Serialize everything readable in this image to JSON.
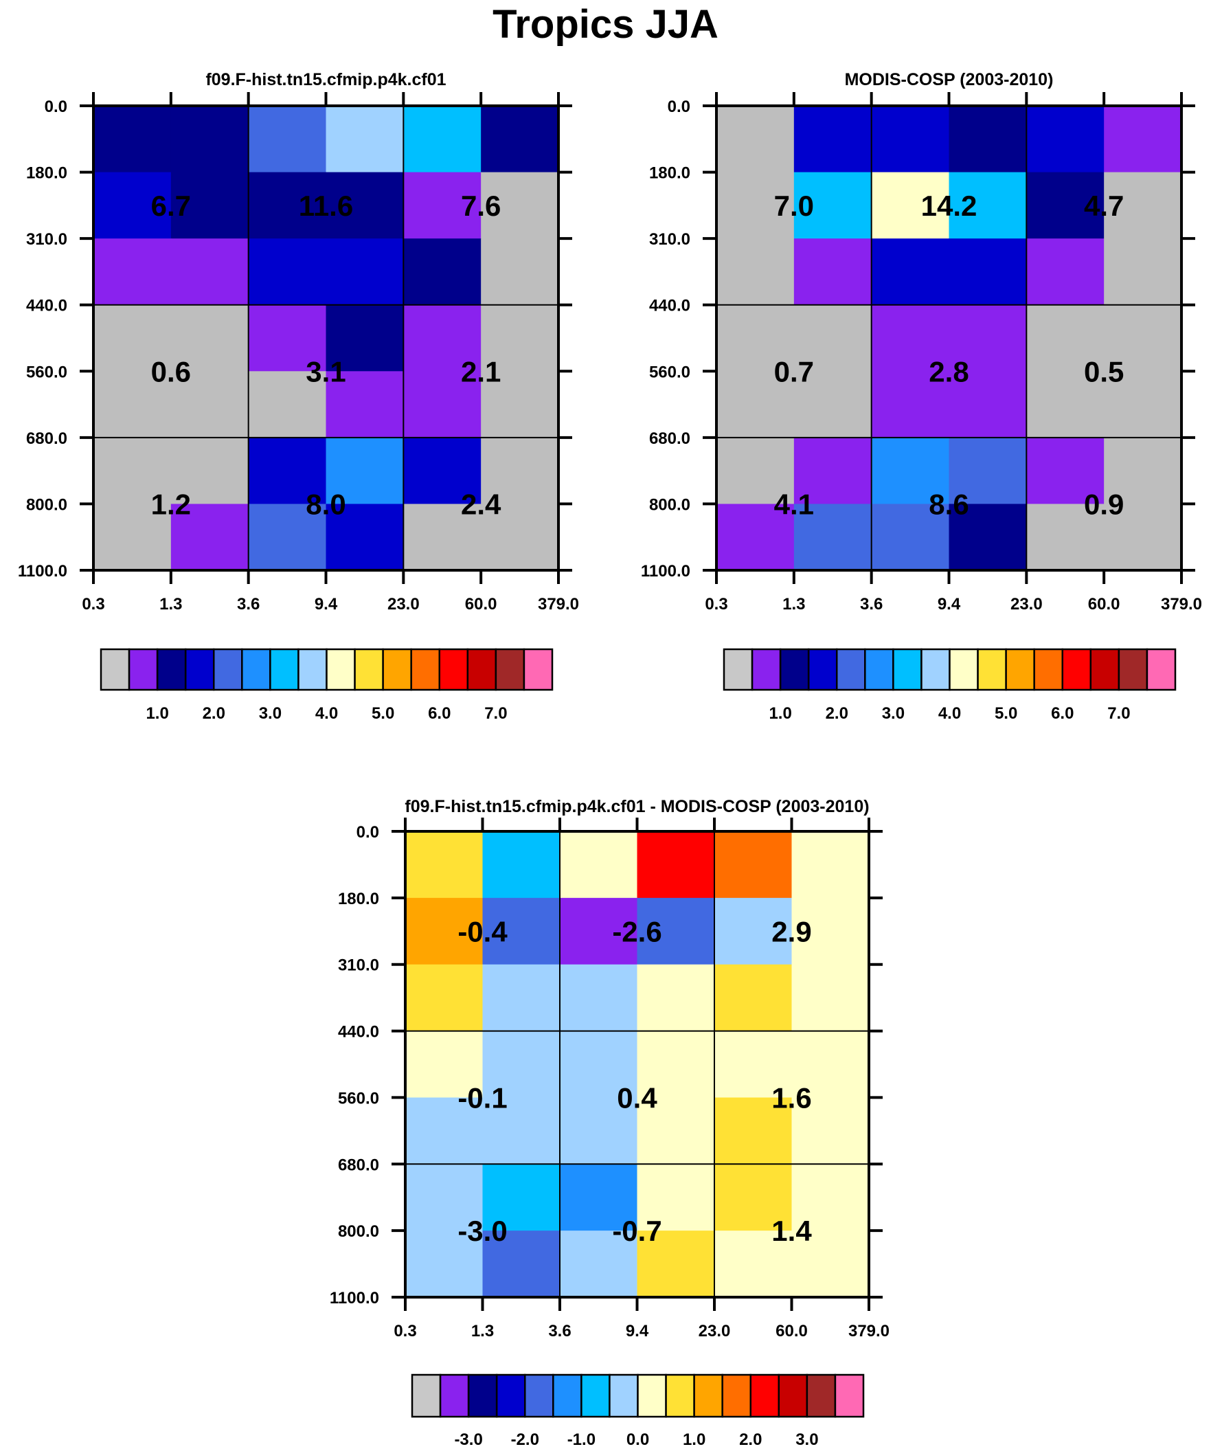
{
  "title": "Tropics JJA",
  "palette": [
    "#bebebe",
    "#8a22ee",
    "#00008b",
    "#0000cd",
    "#4169e1",
    "#1e90ff",
    "#00bfff",
    "#a0d2ff",
    "#ffffc8",
    "#ffe135",
    "#ffa500",
    "#ff6e00",
    "#ff0000",
    "#c80000",
    "#a02828",
    "#ff69b4"
  ],
  "colorbar_first": "#c8c8c8",
  "chart_data": [
    {
      "type": "heatmap",
      "title": "f09.F-hist.tn15.cfmip.p4k.cf01",
      "x_ticks": [
        "0.3",
        "1.3",
        "3.6",
        "9.4",
        "23.0",
        "60.0",
        "379.0"
      ],
      "y_ticks": [
        "0.0",
        "180.0",
        "310.0",
        "440.0",
        "560.0",
        "680.0",
        "800.0",
        "1100.0"
      ],
      "cell_color_index": [
        [
          2,
          2,
          4,
          7,
          6,
          2
        ],
        [
          3,
          2,
          2,
          2,
          1,
          0
        ],
        [
          1,
          1,
          3,
          3,
          2,
          0
        ],
        [
          0,
          0,
          1,
          2,
          1,
          0
        ],
        [
          0,
          0,
          0,
          1,
          1,
          0
        ],
        [
          0,
          0,
          3,
          5,
          3,
          0
        ],
        [
          0,
          1,
          4,
          3,
          0,
          0
        ]
      ],
      "block_labels": [
        [
          "6.7",
          "11.6",
          "7.6"
        ],
        [
          "0.6",
          "3.1",
          "2.1"
        ],
        [
          "1.2",
          "8.0",
          "2.4"
        ]
      ],
      "colorbar_labels": [
        "1.0",
        "2.0",
        "3.0",
        "4.0",
        "5.0",
        "6.0",
        "7.0"
      ]
    },
    {
      "type": "heatmap",
      "title": "MODIS-COSP (2003-2010)",
      "x_ticks": [
        "0.3",
        "1.3",
        "3.6",
        "9.4",
        "23.0",
        "60.0",
        "379.0"
      ],
      "y_ticks": [
        "0.0",
        "180.0",
        "310.0",
        "440.0",
        "560.0",
        "680.0",
        "800.0",
        "1100.0"
      ],
      "cell_color_index": [
        [
          0,
          3,
          3,
          2,
          3,
          1
        ],
        [
          0,
          6,
          8,
          6,
          2,
          0
        ],
        [
          0,
          1,
          3,
          3,
          1,
          0
        ],
        [
          0,
          0,
          1,
          1,
          0,
          0
        ],
        [
          0,
          0,
          1,
          1,
          0,
          0
        ],
        [
          0,
          1,
          5,
          4,
          1,
          0
        ],
        [
          1,
          4,
          4,
          2,
          0,
          0
        ]
      ],
      "block_labels": [
        [
          "7.0",
          "14.2",
          "4.7"
        ],
        [
          "0.7",
          "2.8",
          "0.5"
        ],
        [
          "4.1",
          "8.6",
          "0.9"
        ]
      ],
      "colorbar_labels": [
        "1.0",
        "2.0",
        "3.0",
        "4.0",
        "5.0",
        "6.0",
        "7.0"
      ]
    },
    {
      "type": "heatmap",
      "title": "f09.F-hist.tn15.cfmip.p4k.cf01 - MODIS-COSP (2003-2010)",
      "x_ticks": [
        "0.3",
        "1.3",
        "3.6",
        "9.4",
        "23.0",
        "60.0",
        "379.0"
      ],
      "y_ticks": [
        "0.0",
        "180.0",
        "310.0",
        "440.0",
        "560.0",
        "680.0",
        "800.0",
        "1100.0"
      ],
      "cell_color_index": [
        [
          9,
          6,
          8,
          12,
          11,
          8
        ],
        [
          10,
          4,
          1,
          4,
          7,
          8
        ],
        [
          9,
          7,
          7,
          8,
          9,
          8
        ],
        [
          8,
          7,
          7,
          8,
          8,
          8
        ],
        [
          7,
          7,
          7,
          8,
          9,
          8
        ],
        [
          7,
          6,
          5,
          8,
          9,
          8
        ],
        [
          7,
          4,
          7,
          9,
          8,
          8
        ]
      ],
      "block_labels": [
        [
          "-0.4",
          "-2.6",
          "2.9"
        ],
        [
          "-0.1",
          "0.4",
          "1.6"
        ],
        [
          "-3.0",
          "-0.7",
          "1.4"
        ]
      ],
      "colorbar_labels": [
        "-3.0",
        "-2.0",
        "-1.0",
        "0.0",
        "1.0",
        "2.0",
        "3.0"
      ]
    }
  ]
}
